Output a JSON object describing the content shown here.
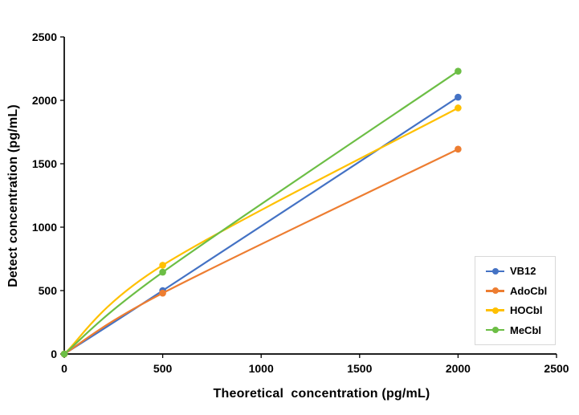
{
  "chart_data": {
    "type": "line",
    "title": "",
    "xlabel": "Theoretical  concentration (pg/mL)",
    "ylabel": "Detect concentration (pg/mL)",
    "x": [
      0,
      500,
      2000
    ],
    "series": [
      {
        "name": "VB12",
        "color": "#4472C4",
        "values": [
          0,
          500,
          2025
        ]
      },
      {
        "name": "AdoCbl",
        "color": "#ED7D31",
        "values": [
          0,
          480,
          1615
        ]
      },
      {
        "name": "HOCbl",
        "color": "#FFC000",
        "values": [
          0,
          700,
          1940
        ]
      },
      {
        "name": "MeCbl",
        "color": "#6CBE45",
        "values": [
          0,
          645,
          2230
        ]
      }
    ],
    "xlim": [
      0,
      2500
    ],
    "ylim": [
      0,
      2500
    ],
    "xticks": [
      0,
      500,
      1000,
      1500,
      2000,
      2500
    ],
    "yticks": [
      0,
      500,
      1000,
      1500,
      2000,
      2500
    ],
    "grid": false,
    "line_style": "smooth",
    "marker": "circle",
    "legend_position": "middle-right",
    "legend_border_color": "#D8D8D8",
    "axis_color": "#000000",
    "background": "#FFFFFF"
  }
}
